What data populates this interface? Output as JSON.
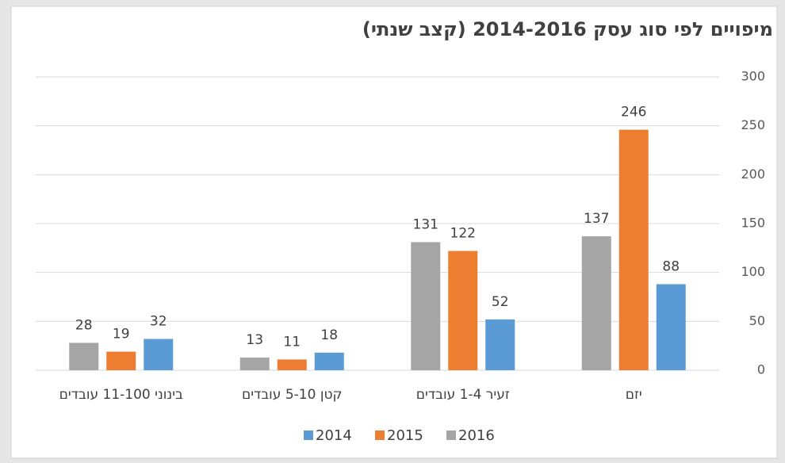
{
  "chart_data": {
    "type": "bar",
    "title": "מיפויים לפי סוג עסק 2014-2016 (קצב שנתי)",
    "categories": [
      "יזם",
      "זעיר 1-4 עובדים",
      "קטן 5-10 עובדים",
      "בינוני 11-100 עובדים"
    ],
    "series": [
      {
        "name": "2014",
        "color": "#5b9bd5",
        "values": [
          88,
          52,
          18,
          32
        ]
      },
      {
        "name": "2015",
        "color": "#ed7d31",
        "values": [
          246,
          122,
          11,
          19
        ]
      },
      {
        "name": "2016",
        "color": "#a5a5a5",
        "values": [
          137,
          131,
          13,
          28
        ]
      }
    ],
    "ylim": [
      0,
      300
    ],
    "yticks": [
      0,
      50,
      100,
      150,
      200,
      250,
      300
    ],
    "grid": true,
    "legend": "bottom"
  }
}
